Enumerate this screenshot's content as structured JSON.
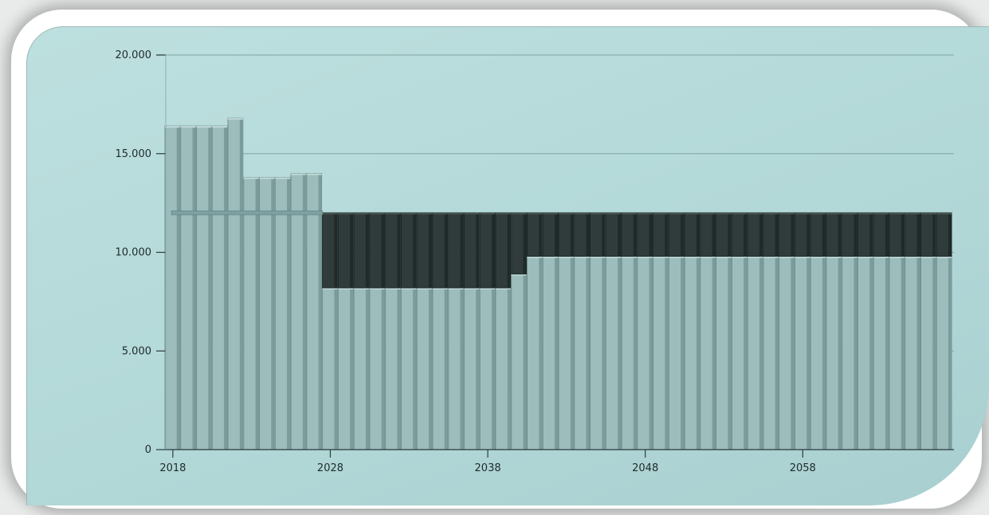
{
  "chart_data": {
    "type": "bar",
    "stacked": true,
    "grid": true,
    "legend": "none",
    "ylim": [
      0,
      20000
    ],
    "yticks": [
      0,
      5000,
      10000,
      15000,
      20000
    ],
    "ytick_labels": [
      "0",
      "5.000",
      "10.000",
      "15.000",
      "20.000"
    ],
    "x_start": 2018,
    "x_end": 2067,
    "xticks": [
      2018,
      2028,
      2038,
      2048,
      2058
    ],
    "xtick_labels": [
      "2018",
      "2028",
      "2038",
      "2048",
      "2058"
    ],
    "reference_line": {
      "value": 12000,
      "from": 2018,
      "to": 2027
    },
    "series": [
      {
        "color": "#9dbdbd",
        "values": [
          16400,
          16400,
          16400,
          16400,
          16800,
          13800,
          13800,
          13800,
          14000,
          14000,
          8200,
          8200,
          8200,
          8200,
          8200,
          8200,
          8200,
          8200,
          8200,
          8200,
          8200,
          8200,
          8900,
          9800,
          9800,
          9800,
          9800,
          9800,
          9800,
          9800,
          9800,
          9800,
          9800,
          9800,
          9800,
          9800,
          9800,
          9800,
          9800,
          9800,
          9800,
          9800,
          9800,
          9800,
          9800,
          9800,
          9800,
          9800,
          9800,
          9800
        ]
      },
      {
        "color": "#2f3c3b",
        "values": [
          0,
          0,
          0,
          0,
          0,
          0,
          0,
          0,
          0,
          0,
          3800,
          3800,
          3800,
          3800,
          3800,
          3800,
          3800,
          3800,
          3800,
          3800,
          3800,
          3800,
          3100,
          2200,
          2200,
          2200,
          2200,
          2200,
          2200,
          2200,
          2200,
          2200,
          2200,
          2200,
          2200,
          2200,
          2200,
          2200,
          2200,
          2200,
          2200,
          2200,
          2200,
          2200,
          2200,
          2200,
          2200,
          2200,
          2200,
          2200
        ]
      }
    ]
  }
}
